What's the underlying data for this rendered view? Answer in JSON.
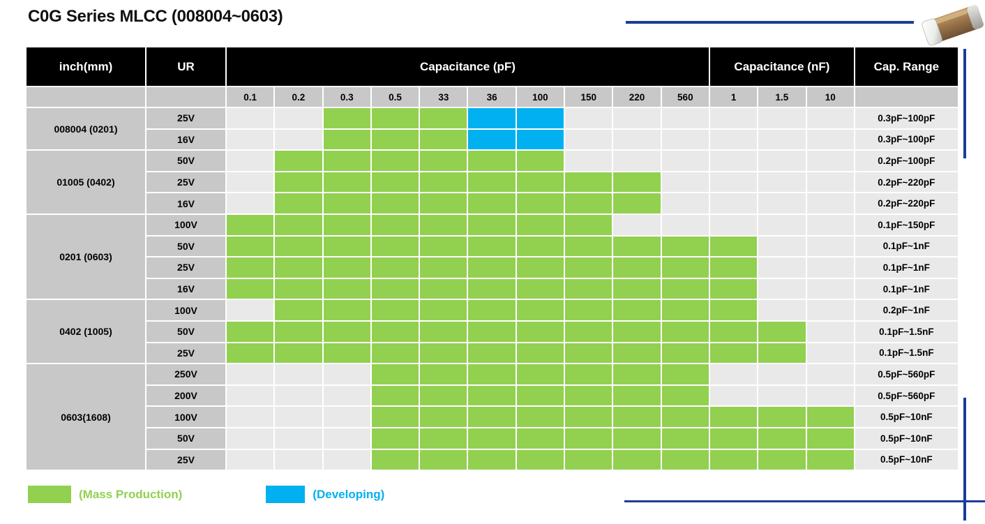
{
  "title": "C0G Series MLCC  (008004~0603)",
  "colors": {
    "mass_production": "#92d050",
    "developing": "#00b0f0",
    "header_bg": "#000000",
    "label_bg": "#c8c8c8",
    "empty_cell": "#e9e9e9",
    "accent_line": "#1b3d99"
  },
  "table": {
    "headers": {
      "inch": "inch(mm)",
      "ur": "UR",
      "cap_pf": "Capacitance (pF)",
      "cap_nf": "Capacitance (nF)",
      "cap_range": "Cap. Range"
    },
    "cap_columns": [
      "0.1",
      "0.2",
      "0.3",
      "0.5",
      "33",
      "36",
      "100",
      "150",
      "220",
      "560",
      "1",
      "1.5",
      "10"
    ],
    "cell_legend": {
      "e": "empty",
      "g": "mass_production",
      "b": "developing"
    },
    "groups": [
      {
        "size": "008004 (0201)",
        "rows": [
          {
            "ur": "25V",
            "cells": "eegggbbeeeeee",
            "range": "0.3pF~100pF"
          },
          {
            "ur": "16V",
            "cells": "eegggbbeeeeee",
            "range": "0.3pF~100pF"
          }
        ]
      },
      {
        "size": "01005 (0402)",
        "rows": [
          {
            "ur": "50V",
            "cells": "eggggggeeeeee",
            "range": "0.2pF~100pF"
          },
          {
            "ur": "25V",
            "cells": "eggggggggeeee",
            "range": "0.2pF~220pF"
          },
          {
            "ur": "16V",
            "cells": "eggggggggeeee",
            "range": "0.2pF~220pF"
          }
        ]
      },
      {
        "size": "0201 (0603)",
        "rows": [
          {
            "ur": "100V",
            "cells": "ggggggggeeeee",
            "range": "0.1pF~150pF"
          },
          {
            "ur": "50V",
            "cells": "gggggggggggee",
            "range": "0.1pF~1nF"
          },
          {
            "ur": "25V",
            "cells": "gggggggggggee",
            "range": "0.1pF~1nF"
          },
          {
            "ur": "16V",
            "cells": "gggggggggggee",
            "range": "0.1pF~1nF"
          }
        ]
      },
      {
        "size": "0402 (1005)",
        "rows": [
          {
            "ur": "100V",
            "cells": "eggggggggggee",
            "range": "0.2pF~1nF"
          },
          {
            "ur": "50V",
            "cells": "gggggggggggge",
            "range": "0.1pF~1.5nF"
          },
          {
            "ur": "25V",
            "cells": "gggggggggggge",
            "range": "0.1pF~1.5nF"
          }
        ]
      },
      {
        "size": "0603(1608)",
        "rows": [
          {
            "ur": "250V",
            "cells": "eeegggggggeee",
            "range": "0.5pF~560pF"
          },
          {
            "ur": "200V",
            "cells": "eeegggggggeee",
            "range": "0.5pF~560pF"
          },
          {
            "ur": "100V",
            "cells": "eeegggggggggg",
            "range": "0.5pF~10nF"
          },
          {
            "ur": "50V",
            "cells": "eeegggggggggg",
            "range": "0.5pF~10nF"
          },
          {
            "ur": "25V",
            "cells": "eeegggggggggg",
            "range": "0.5pF~10nF"
          }
        ]
      }
    ]
  },
  "legend": [
    {
      "label": "(Mass Production)",
      "key": "mass_production"
    },
    {
      "label": "(Developing)",
      "key": "developing"
    }
  ]
}
